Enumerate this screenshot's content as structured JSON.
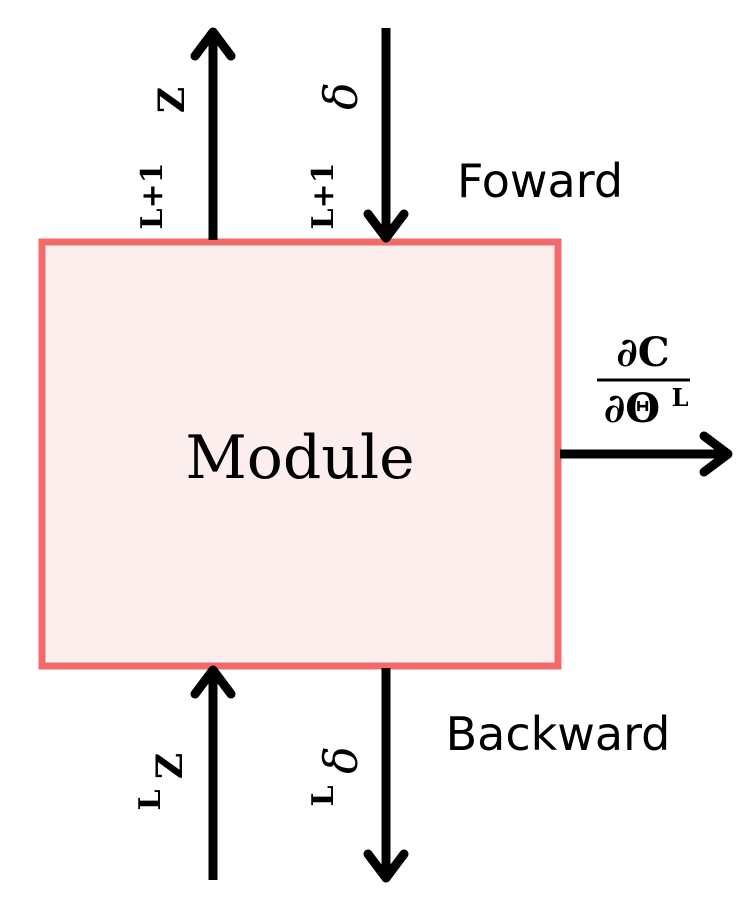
{
  "module": {
    "label": "Module",
    "fill_color": "#fdeeee",
    "border_color": "#f26a6a"
  },
  "top": {
    "output_arrow": {
      "superscript": "L+1",
      "symbol": "Z",
      "direction": "up"
    },
    "input_arrow": {
      "superscript": "L+1",
      "symbol": "δ",
      "direction": "down"
    },
    "phase_label": "Foward"
  },
  "bottom": {
    "input_arrow": {
      "superscript": "L",
      "symbol": "Z",
      "direction": "up"
    },
    "output_arrow": {
      "superscript": "L",
      "symbol": "δ",
      "direction": "down"
    },
    "phase_label": "Backward"
  },
  "gradient": {
    "numerator": "∂C",
    "denominator": "∂Θ",
    "denominator_superscript": "L",
    "direction": "right"
  },
  "colors": {
    "arrow": "#000000",
    "text": "#000000"
  }
}
